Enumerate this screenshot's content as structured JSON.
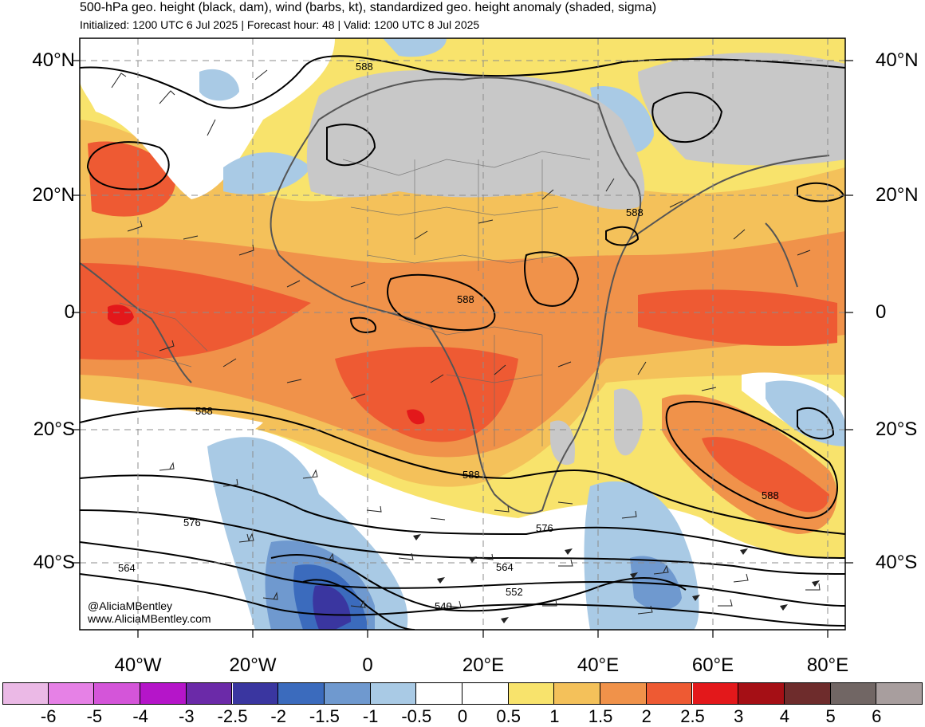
{
  "header": {
    "title": "500-hPa geo. height (black, dam), wind (barbs, kt), standardized geo. height anomaly (shaded, sigma)",
    "subtitle": "Initialized: 1200 UTC 6 Jul 2025 | Forecast hour: 48 | Valid: 1200 UTC 8 Jul 2025"
  },
  "map": {
    "lat_labels": [
      "40°N",
      "20°N",
      "0",
      "20°S",
      "40°S"
    ],
    "lon_labels": [
      "40°W",
      "20°W",
      "0",
      "20°E",
      "40°E",
      "60°E",
      "80°E"
    ],
    "contour_labels": [
      "588",
      "588",
      "588",
      "588",
      "588",
      "588",
      "576",
      "576",
      "564",
      "564",
      "552",
      "540"
    ],
    "credit_line_1": "@AliciaMBentley",
    "credit_line_2": "www.AliciaMBentley.com",
    "land_color": "#c8c8c8",
    "coast_color": "#555555"
  },
  "colorbar": {
    "labels": [
      "-6",
      "-5",
      "-4",
      "-3",
      "-2.5",
      "-2",
      "-1.5",
      "-1",
      "-0.5",
      "0",
      "0.5",
      "1",
      "1.5",
      "2",
      "2.5",
      "3",
      "4",
      "5",
      "6"
    ],
    "colors": [
      "#ebb9e6",
      "#e681e6",
      "#d455d9",
      "#b515c9",
      "#6b2aa8",
      "#3a36a0",
      "#3b6bbd",
      "#6f99cf",
      "#a9cae5",
      "#ffffff",
      "#ffffff",
      "#f8e36c",
      "#f4c15a",
      "#f0924a",
      "#ee5a33",
      "#e3181b",
      "#a50f15",
      "#6e2c2c",
      "#716664",
      "#a89e9e"
    ]
  }
}
